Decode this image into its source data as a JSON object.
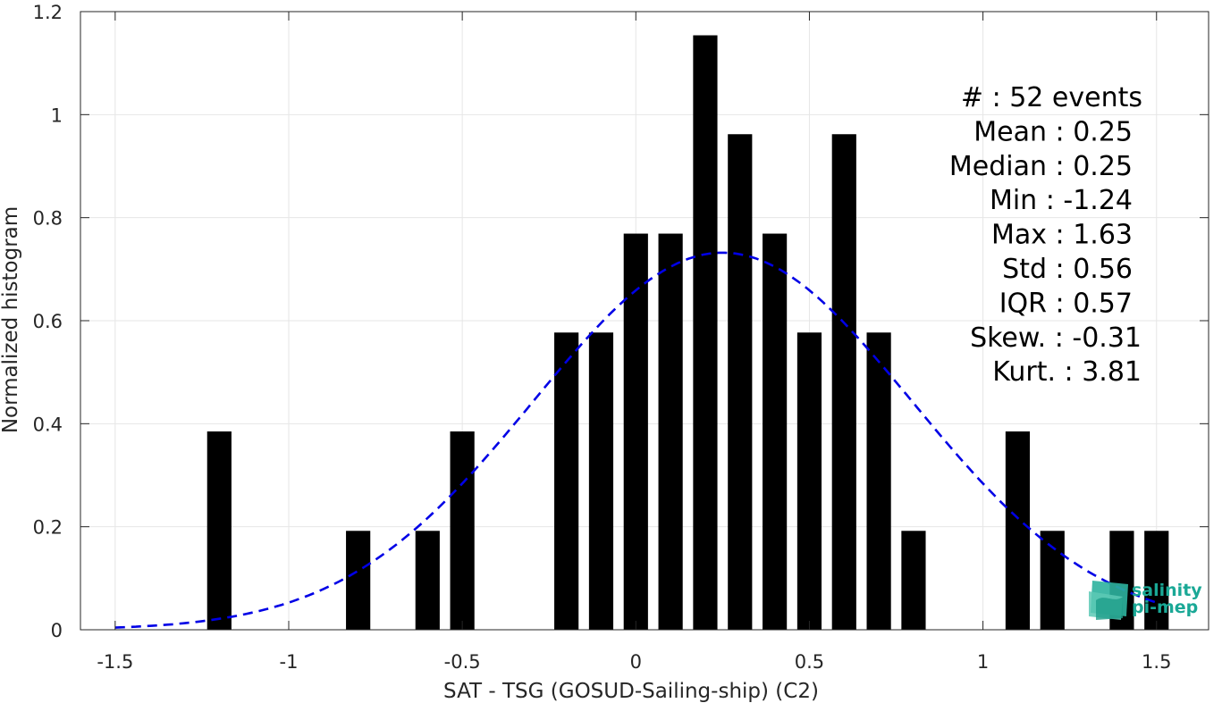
{
  "chart_data": {
    "type": "bar",
    "xlabel": "SAT - TSG (GOSUD-Sailing-ship) (C2)",
    "ylabel": "Normalized histogram",
    "xlim": [
      -1.6,
      1.65
    ],
    "ylim": [
      0,
      1.2
    ],
    "xticks": [
      -1.5,
      -1,
      -0.5,
      0,
      0.5,
      1,
      1.5
    ],
    "xtick_labels": [
      "-1.5",
      "-1",
      "-0.5",
      "0",
      "0.5",
      "1",
      "1.5"
    ],
    "yticks": [
      0,
      0.2,
      0.4,
      0.6,
      0.8,
      1,
      1.2
    ],
    "ytick_labels": [
      "0",
      "0.2",
      "0.4",
      "0.6",
      "0.8",
      "1",
      "1.2"
    ],
    "grid": true,
    "bar_width": 0.07,
    "bar_color": "#000000",
    "bars": [
      {
        "x": -1.2,
        "y": 0.385
      },
      {
        "x": -0.8,
        "y": 0.192
      },
      {
        "x": -0.6,
        "y": 0.192
      },
      {
        "x": -0.5,
        "y": 0.385
      },
      {
        "x": -0.2,
        "y": 0.577
      },
      {
        "x": -0.1,
        "y": 0.577
      },
      {
        "x": 0.0,
        "y": 0.769
      },
      {
        "x": 0.1,
        "y": 0.769
      },
      {
        "x": 0.2,
        "y": 1.154
      },
      {
        "x": 0.3,
        "y": 0.962
      },
      {
        "x": 0.4,
        "y": 0.769
      },
      {
        "x": 0.5,
        "y": 0.577
      },
      {
        "x": 0.6,
        "y": 0.962
      },
      {
        "x": 0.7,
        "y": 0.577
      },
      {
        "x": 0.8,
        "y": 0.192
      },
      {
        "x": 1.1,
        "y": 0.385
      },
      {
        "x": 1.2,
        "y": 0.192
      },
      {
        "x": 1.4,
        "y": 0.192
      },
      {
        "x": 1.5,
        "y": 0.192
      }
    ],
    "fit_curve": {
      "style": "dashed",
      "color": "#0000e6",
      "mean": 0.25,
      "std": 0.545,
      "x_range": [
        -1.5,
        1.5
      ]
    },
    "stats_box": [
      {
        "label": "#  : 52 events"
      },
      {
        "label": "Mean : 0.25"
      },
      {
        "label": "Median : 0.25"
      },
      {
        "label": "Min : -1.24"
      },
      {
        "label": "Max : 1.63"
      },
      {
        "label": "Std : 0.56"
      },
      {
        "label": "IQR : 0.57"
      },
      {
        "label": "Skew. : -0.31"
      },
      {
        "label": "Kurt. : 3.81"
      }
    ]
  },
  "logo": {
    "line1": "salinity",
    "line2": "pi-mep",
    "color": "#1aa896"
  }
}
